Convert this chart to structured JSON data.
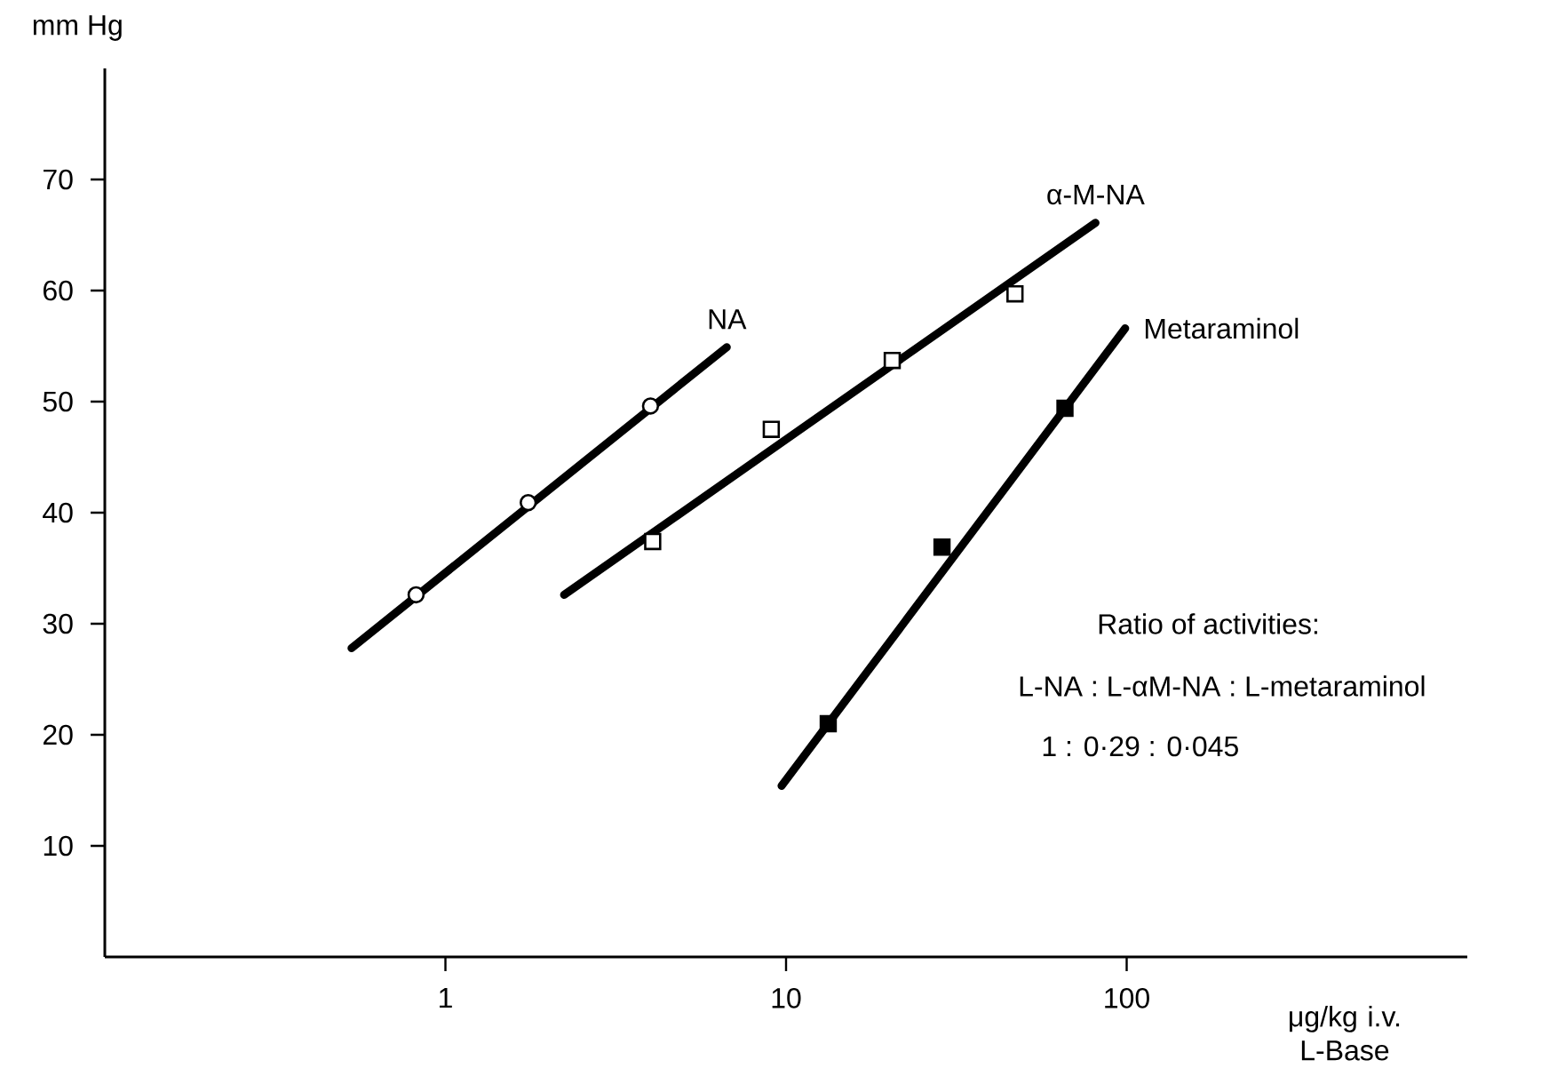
{
  "chart_data": {
    "type": "scatter",
    "log": "x",
    "ylabel": "mm Hg",
    "xlabel": "μg/kg i.v. L-Base",
    "xlim": [
      0.1,
      1000
    ],
    "xticks": [
      1,
      10,
      100
    ],
    "ylim": [
      0,
      80
    ],
    "yticks": [
      10,
      20,
      30,
      40,
      50,
      60,
      70
    ],
    "grid": false,
    "annotations": [
      "Ratio of activities:",
      "L-NA : L-αM-NA : L-metaraminol",
      "1 : 0·29 : 0·045"
    ],
    "series": [
      {
        "name": "NA",
        "type": "line",
        "marker": "none",
        "color": "#000000",
        "x": [
          0.53,
          6.7
        ],
        "values": [
          27.8,
          54.9
        ]
      },
      {
        "marker": "circle",
        "color": "#ffffff",
        "x": [
          0.82,
          1.75,
          4.0
        ],
        "values": [
          32.6,
          40.9,
          49.6
        ]
      },
      {
        "name": "α-M-NA",
        "type": "line",
        "marker": "none",
        "color": "#000000",
        "x": [
          2.23,
          81
        ],
        "values": [
          32.6,
          66.1
        ]
      },
      {
        "marker": "square",
        "color": "#ffffff",
        "x": [
          4.06,
          9.05,
          20.5,
          47
        ],
        "values": [
          37.4,
          47.5,
          53.7,
          59.7
        ]
      },
      {
        "name": "Metaraminol",
        "type": "line",
        "marker": "none",
        "color": "#000000",
        "x": [
          9.7,
          99
        ],
        "values": [
          15.4,
          56.6
        ]
      },
      {
        "marker": "square",
        "color": "#000000",
        "x": [
          13.3,
          28.7,
          65.9
        ],
        "values": [
          21.0,
          36.9,
          49.4
        ]
      }
    ]
  }
}
